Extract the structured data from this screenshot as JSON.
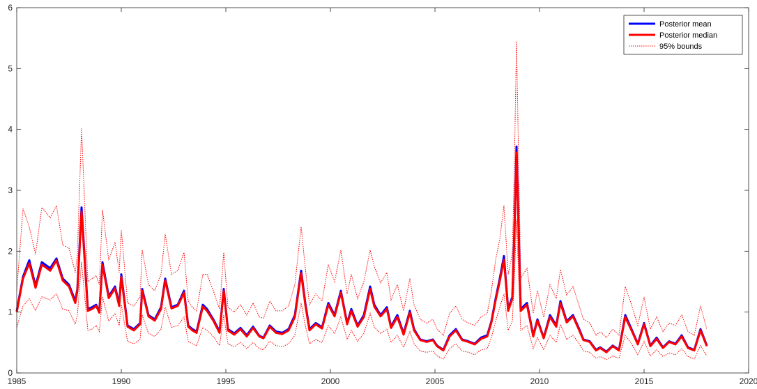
{
  "chart_data": {
    "type": "line",
    "title": "",
    "xlabel": "",
    "ylabel": "",
    "xlim": [
      1985,
      2020
    ],
    "ylim": [
      0,
      6
    ],
    "xticks": [
      1985,
      1990,
      1995,
      2000,
      2005,
      2010,
      2015,
      2020
    ],
    "yticks": [
      0,
      1,
      2,
      3,
      4,
      5,
      6
    ],
    "grid": false,
    "legend_position": "top-right",
    "series": [
      {
        "name": "Posterior mean",
        "color": "#0000ff",
        "style": "solid-thick",
        "x": [
          1985.0,
          1985.3,
          1985.6,
          1985.9,
          1986.2,
          1986.6,
          1986.9,
          1987.2,
          1987.5,
          1987.8,
          1987.9,
          1988.1,
          1988.4,
          1988.6,
          1988.8,
          1988.95,
          1989.1,
          1989.4,
          1989.7,
          1989.9,
          1990.0,
          1990.3,
          1990.6,
          1990.9,
          1991.0,
          1991.3,
          1991.6,
          1991.9,
          1992.1,
          1992.4,
          1992.7,
          1993.0,
          1993.2,
          1993.4,
          1993.6,
          1993.9,
          1994.1,
          1994.4,
          1994.7,
          1994.9,
          1995.1,
          1995.4,
          1995.7,
          1996.0,
          1996.3,
          1996.6,
          1996.8,
          1997.1,
          1997.4,
          1997.7,
          1998.0,
          1998.3,
          1998.6,
          1998.8,
          1999.0,
          1999.3,
          1999.6,
          1999.9,
          2000.2,
          2000.5,
          2000.8,
          2001.0,
          2001.3,
          2001.6,
          2001.9,
          2002.1,
          2002.4,
          2002.7,
          2002.9,
          2003.2,
          2003.5,
          2003.8,
          2004.0,
          2004.3,
          2004.6,
          2004.9,
          2005.1,
          2005.4,
          2005.7,
          2006.0,
          2006.3,
          2006.6,
          2006.9,
          2007.2,
          2007.5,
          2007.7,
          2007.9,
          2008.1,
          2008.3,
          2008.5,
          2008.7,
          2008.8,
          2008.9,
          2009.1,
          2009.4,
          2009.7,
          2009.9,
          2010.2,
          2010.5,
          2010.8,
          2011.0,
          2011.3,
          2011.6,
          2011.9,
          2012.1,
          2012.4,
          2012.7,
          2012.9,
          2013.2,
          2013.5,
          2013.8,
          2014.1,
          2014.4,
          2014.7,
          2015.0,
          2015.3,
          2015.6,
          2015.9,
          2016.2,
          2016.5,
          2016.8,
          2017.1,
          2017.4,
          2017.7,
          2018.0
        ],
        "y": [
          1.02,
          1.58,
          1.85,
          1.43,
          1.82,
          1.72,
          1.88,
          1.55,
          1.45,
          1.18,
          1.38,
          2.72,
          1.05,
          1.08,
          1.12,
          1.01,
          1.82,
          1.26,
          1.42,
          1.13,
          1.62,
          0.78,
          0.72,
          0.82,
          1.38,
          0.95,
          0.88,
          1.08,
          1.55,
          1.08,
          1.12,
          1.35,
          0.78,
          0.72,
          0.68,
          1.12,
          1.05,
          0.88,
          0.68,
          1.38,
          0.72,
          0.65,
          0.74,
          0.62,
          0.76,
          0.61,
          0.58,
          0.78,
          0.68,
          0.66,
          0.72,
          0.95,
          1.68,
          1.15,
          0.72,
          0.82,
          0.75,
          1.15,
          0.95,
          1.35,
          0.82,
          1.05,
          0.78,
          0.95,
          1.42,
          1.12,
          0.95,
          1.08,
          0.76,
          0.95,
          0.65,
          1.02,
          0.72,
          0.55,
          0.52,
          0.55,
          0.45,
          0.38,
          0.62,
          0.72,
          0.55,
          0.52,
          0.48,
          0.58,
          0.62,
          0.85,
          1.22,
          1.55,
          1.92,
          1.05,
          1.25,
          2.35,
          3.72,
          1.05,
          1.15,
          0.62,
          0.88,
          0.58,
          0.95,
          0.78,
          1.18,
          0.85,
          0.95,
          0.72,
          0.55,
          0.52,
          0.38,
          0.42,
          0.35,
          0.45,
          0.38,
          0.95,
          0.72,
          0.48,
          0.82,
          0.45,
          0.58,
          0.42,
          0.52,
          0.48,
          0.62,
          0.42,
          0.38,
          0.72,
          0.45
        ]
      },
      {
        "name": "Posterior median",
        "color": "#ff0000",
        "style": "solid-thick",
        "x": [
          1985.0,
          1985.3,
          1985.6,
          1985.9,
          1986.2,
          1986.6,
          1986.9,
          1987.2,
          1987.5,
          1987.8,
          1987.9,
          1988.1,
          1988.4,
          1988.6,
          1988.8,
          1988.95,
          1989.1,
          1989.4,
          1989.7,
          1989.9,
          1990.0,
          1990.3,
          1990.6,
          1990.9,
          1991.0,
          1991.3,
          1991.6,
          1991.9,
          1992.1,
          1992.4,
          1992.7,
          1993.0,
          1993.2,
          1993.4,
          1993.6,
          1993.9,
          1994.1,
          1994.4,
          1994.7,
          1994.9,
          1995.1,
          1995.4,
          1995.7,
          1996.0,
          1996.3,
          1996.6,
          1996.8,
          1997.1,
          1997.4,
          1997.7,
          1998.0,
          1998.3,
          1998.6,
          1998.8,
          1999.0,
          1999.3,
          1999.6,
          1999.9,
          2000.2,
          2000.5,
          2000.8,
          2001.0,
          2001.3,
          2001.6,
          2001.9,
          2002.1,
          2002.4,
          2002.7,
          2002.9,
          2003.2,
          2003.5,
          2003.8,
          2004.0,
          2004.3,
          2004.6,
          2004.9,
          2005.1,
          2005.4,
          2005.7,
          2006.0,
          2006.3,
          2006.6,
          2006.9,
          2007.2,
          2007.5,
          2007.7,
          2007.9,
          2008.1,
          2008.3,
          2008.5,
          2008.7,
          2008.8,
          2008.9,
          2009.1,
          2009.4,
          2009.7,
          2009.9,
          2010.2,
          2010.5,
          2010.8,
          2011.0,
          2011.3,
          2011.6,
          2011.9,
          2012.1,
          2012.4,
          2012.7,
          2012.9,
          2013.2,
          2013.5,
          2013.8,
          2014.1,
          2014.4,
          2014.7,
          2015.0,
          2015.3,
          2015.6,
          2015.9,
          2016.2,
          2016.5,
          2016.8,
          2017.1,
          2017.4,
          2017.7,
          2018.0
        ],
        "y": [
          1.0,
          1.55,
          1.8,
          1.4,
          1.78,
          1.68,
          1.85,
          1.52,
          1.42,
          1.15,
          1.35,
          2.65,
          1.02,
          1.05,
          1.1,
          0.99,
          1.78,
          1.23,
          1.39,
          1.1,
          1.58,
          0.76,
          0.7,
          0.8,
          1.35,
          0.93,
          0.86,
          1.05,
          1.52,
          1.06,
          1.1,
          1.32,
          0.76,
          0.7,
          0.66,
          1.09,
          1.02,
          0.86,
          0.66,
          1.35,
          0.7,
          0.63,
          0.72,
          0.6,
          0.74,
          0.6,
          0.57,
          0.76,
          0.66,
          0.64,
          0.7,
          0.92,
          1.64,
          1.12,
          0.7,
          0.8,
          0.73,
          1.12,
          0.93,
          1.32,
          0.8,
          1.02,
          0.76,
          0.92,
          1.38,
          1.09,
          0.93,
          1.05,
          0.74,
          0.92,
          0.63,
          0.99,
          0.7,
          0.54,
          0.51,
          0.54,
          0.44,
          0.37,
          0.6,
          0.7,
          0.54,
          0.51,
          0.47,
          0.56,
          0.6,
          0.83,
          1.19,
          1.51,
          1.86,
          1.02,
          1.22,
          2.28,
          3.62,
          1.02,
          1.12,
          0.6,
          0.86,
          0.57,
          0.92,
          0.76,
          1.15,
          0.83,
          0.93,
          0.7,
          0.54,
          0.51,
          0.37,
          0.41,
          0.34,
          0.44,
          0.37,
          0.92,
          0.7,
          0.47,
          0.8,
          0.44,
          0.56,
          0.41,
          0.51,
          0.47,
          0.6,
          0.41,
          0.37,
          0.7,
          0.44
        ]
      },
      {
        "name": "95% bounds",
        "color": "#ff0000",
        "style": "dotted",
        "x": [
          1985.0,
          1985.3,
          1985.6,
          1985.9,
          1986.2,
          1986.6,
          1986.9,
          1987.2,
          1987.5,
          1987.8,
          1987.9,
          1988.1,
          1988.4,
          1988.6,
          1988.8,
          1988.95,
          1989.1,
          1989.4,
          1989.7,
          1989.9,
          1990.0,
          1990.3,
          1990.6,
          1990.9,
          1991.0,
          1991.3,
          1991.6,
          1991.9,
          1992.1,
          1992.4,
          1992.7,
          1993.0,
          1993.2,
          1993.4,
          1993.6,
          1993.9,
          1994.1,
          1994.4,
          1994.7,
          1994.9,
          1995.1,
          1995.4,
          1995.7,
          1996.0,
          1996.3,
          1996.6,
          1996.8,
          1997.1,
          1997.4,
          1997.7,
          1998.0,
          1998.3,
          1998.6,
          1998.8,
          1999.0,
          1999.3,
          1999.6,
          1999.9,
          2000.2,
          2000.5,
          2000.8,
          2001.0,
          2001.3,
          2001.6,
          2001.9,
          2002.1,
          2002.4,
          2002.7,
          2002.9,
          2003.2,
          2003.5,
          2003.8,
          2004.0,
          2004.3,
          2004.6,
          2004.9,
          2005.1,
          2005.4,
          2005.7,
          2006.0,
          2006.3,
          2006.6,
          2006.9,
          2007.2,
          2007.5,
          2007.7,
          2007.9,
          2008.1,
          2008.3,
          2008.5,
          2008.7,
          2008.8,
          2008.9,
          2009.1,
          2009.4,
          2009.7,
          2009.9,
          2010.2,
          2010.5,
          2010.8,
          2011.0,
          2011.3,
          2011.6,
          2011.9,
          2012.1,
          2012.4,
          2012.7,
          2012.9,
          2013.2,
          2013.5,
          2013.8,
          2014.1,
          2014.4,
          2014.7,
          2015.0,
          2015.3,
          2015.6,
          2015.9,
          2016.2,
          2016.5,
          2016.8,
          2017.1,
          2017.4,
          2017.7,
          2018.0
        ],
        "upper": [
          1.35,
          2.7,
          2.4,
          1.95,
          2.72,
          2.55,
          2.75,
          2.1,
          2.05,
          1.65,
          1.95,
          4.02,
          1.5,
          1.55,
          1.6,
          1.45,
          2.68,
          1.85,
          2.15,
          1.65,
          2.35,
          1.15,
          1.1,
          1.25,
          2.02,
          1.45,
          1.35,
          1.62,
          2.28,
          1.62,
          1.68,
          1.98,
          1.18,
          1.08,
          1.02,
          1.62,
          1.62,
          1.35,
          1.05,
          1.98,
          1.08,
          1.0,
          1.12,
          0.95,
          1.15,
          0.92,
          0.9,
          1.18,
          1.02,
          1.02,
          1.1,
          1.45,
          2.4,
          1.72,
          1.12,
          1.3,
          1.18,
          1.78,
          1.5,
          2.02,
          1.3,
          1.62,
          1.22,
          1.5,
          2.02,
          1.75,
          1.48,
          1.65,
          1.2,
          1.45,
          1.02,
          1.55,
          1.12,
          0.88,
          0.82,
          0.88,
          0.72,
          0.62,
          0.98,
          1.1,
          0.88,
          0.82,
          0.78,
          0.92,
          0.98,
          1.35,
          1.85,
          2.2,
          2.75,
          1.62,
          1.95,
          3.45,
          5.45,
          1.55,
          1.72,
          0.98,
          1.35,
          0.92,
          1.45,
          1.22,
          1.7,
          1.28,
          1.42,
          1.1,
          0.88,
          0.82,
          0.62,
          0.68,
          0.58,
          0.72,
          0.62,
          1.42,
          1.12,
          0.78,
          1.25,
          0.72,
          0.92,
          0.68,
          0.82,
          0.78,
          0.95,
          0.68,
          0.62,
          1.1,
          0.72
        ],
        "lower": [
          0.75,
          1.1,
          1.22,
          1.02,
          1.25,
          1.2,
          1.3,
          1.05,
          1.02,
          0.8,
          0.95,
          1.82,
          0.7,
          0.72,
          0.78,
          0.68,
          1.25,
          0.85,
          0.98,
          0.78,
          1.12,
          0.52,
          0.48,
          0.55,
          0.95,
          0.65,
          0.6,
          0.72,
          1.08,
          0.75,
          0.78,
          0.92,
          0.52,
          0.48,
          0.45,
          0.75,
          0.7,
          0.6,
          0.45,
          0.95,
          0.48,
          0.43,
          0.5,
          0.4,
          0.5,
          0.4,
          0.38,
          0.52,
          0.45,
          0.43,
          0.48,
          0.62,
          1.15,
          0.78,
          0.48,
          0.55,
          0.5,
          0.78,
          0.65,
          0.92,
          0.55,
          0.7,
          0.52,
          0.65,
          0.98,
          0.75,
          0.65,
          0.72,
          0.5,
          0.62,
          0.42,
          0.68,
          0.48,
          0.36,
          0.34,
          0.36,
          0.28,
          0.23,
          0.4,
          0.48,
          0.36,
          0.34,
          0.3,
          0.38,
          0.4,
          0.58,
          0.85,
          1.08,
          1.3,
          0.7,
          0.85,
          1.55,
          2.52,
          0.7,
          0.78,
          0.4,
          0.58,
          0.38,
          0.62,
          0.5,
          0.8,
          0.55,
          0.62,
          0.48,
          0.36,
          0.34,
          0.24,
          0.27,
          0.22,
          0.28,
          0.24,
          0.62,
          0.48,
          0.3,
          0.52,
          0.28,
          0.38,
          0.27,
          0.33,
          0.3,
          0.4,
          0.27,
          0.23,
          0.45,
          0.28
        ]
      }
    ]
  }
}
